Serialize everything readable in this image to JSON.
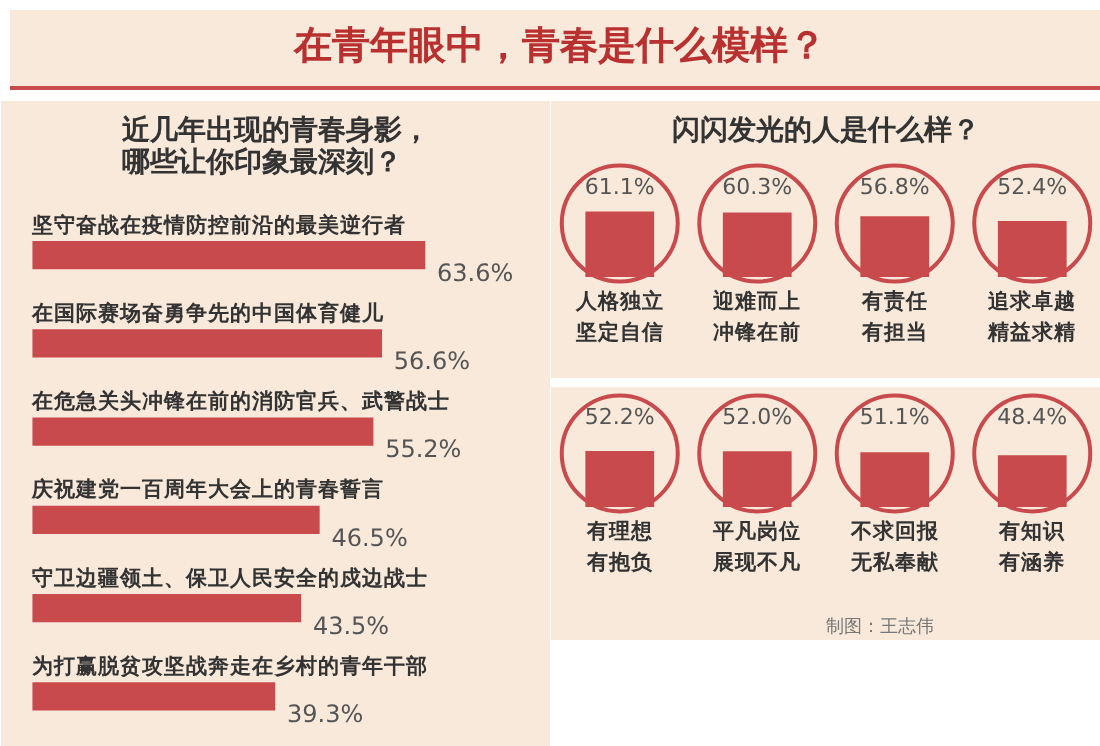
{
  "chart_data": [
    {
      "type": "other",
      "title": "在青年眼中，青春是什么模样？"
    },
    {
      "type": "bar",
      "orientation": "horizontal",
      "title": "近几年出现的青春身影，哪些让你印象最深刻？",
      "categories": [
        "坚守奋战在疫情防控前沿的最美逆行者",
        "在国际赛场奋勇争先的中国体育健儿",
        "在危急关头冲锋在前的消防官兵、武警战士",
        "庆祝建党一百周年大会上的青春誓言",
        "守卫边疆领土、保卫人民安全的戍边战士",
        "为打赢脱贫攻坚战奔走在乡村的青年干部"
      ],
      "values": [
        63.6,
        56.6,
        55.2,
        46.5,
        43.5,
        39.3
      ],
      "color": "#c94a4c",
      "data_labels": true,
      "value_labels": [
        "63.6%",
        "56.6%",
        "55.2%",
        "46.5%",
        "43.5%",
        "39.3%"
      ]
    },
    {
      "type": "bar",
      "title": "闪闪发光的人是什么样？",
      "categories": [
        "人格独立坚定自信",
        "迎难而上冲锋在前",
        "有责任有担当",
        "追求卓越精益求精"
      ],
      "values": [
        61.1,
        60.3,
        56.8,
        52.4
      ],
      "value_labels": [
        "61.1%",
        "60.3%",
        "56.8%",
        "52.4%"
      ],
      "color": "#c94a4c",
      "data_labels": true
    },
    {
      "type": "bar",
      "categories": [
        "有理想有抱负",
        "平凡岗位展现不凡",
        "不求回报无私奉献",
        "有知识有涵养"
      ],
      "values": [
        52.2,
        52.0,
        51.1,
        48.4
      ],
      "value_labels": [
        "52.2%",
        "52.0%",
        "51.1%",
        "48.4%"
      ],
      "color": "#c94a4c",
      "data_labels": true,
      "annotations": [
        "制图：王志伟"
      ]
    }
  ]
}
